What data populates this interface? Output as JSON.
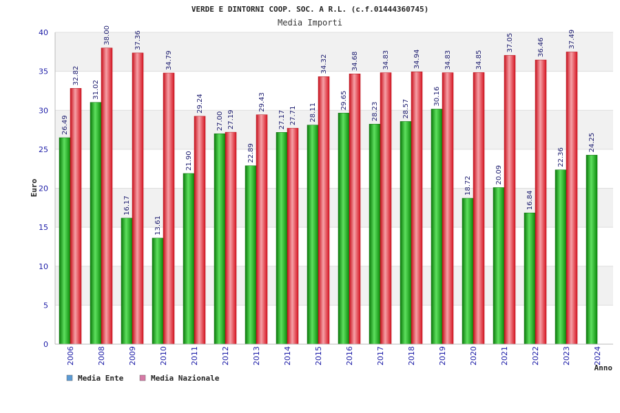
{
  "chart_data": {
    "type": "bar",
    "title": "VERDE E DINTORNI COOP. SOC. A R.L. (c.f.01444360745)",
    "subtitle": "Media Importi",
    "ylabel": "Euro",
    "xlabel": "Anno",
    "ylim": [
      0,
      40
    ],
    "yticks": [
      0,
      5,
      10,
      15,
      20,
      25,
      30,
      35,
      40
    ],
    "grid": true,
    "legend_position": "bottom-left",
    "categories": [
      "2006",
      "2008",
      "2009",
      "2010",
      "2011",
      "2012",
      "2013",
      "2014",
      "2015",
      "2016",
      "2017",
      "2018",
      "2019",
      "2020",
      "2021",
      "2022",
      "2023",
      "2024"
    ],
    "series": [
      {
        "name": "Media Ente",
        "color": "#1ea01e",
        "legend_color": "#5b9bd5",
        "values": [
          26.49,
          31.02,
          16.17,
          13.61,
          21.9,
          27.0,
          22.89,
          27.17,
          28.11,
          29.65,
          28.23,
          28.57,
          30.16,
          18.72,
          20.09,
          16.84,
          22.36,
          24.25
        ],
        "labels": [
          "26.49",
          "31.02",
          "16.17",
          "13.61",
          "21.90",
          "27.00",
          "22.89",
          "27.17",
          "28.11",
          "29.65",
          "28.23",
          "28.57",
          "30.16",
          "18.72",
          "20.09",
          "16.84",
          "22.36",
          "24.25"
        ]
      },
      {
        "name": "Media Nazionale",
        "color": "#e01e2a",
        "legend_color": "#d67aa6",
        "values": [
          32.82,
          38.0,
          37.36,
          34.79,
          29.24,
          27.19,
          29.43,
          27.71,
          34.32,
          34.68,
          34.83,
          34.94,
          34.83,
          34.85,
          37.05,
          36.46,
          37.49,
          null
        ],
        "labels": [
          "32.82",
          "38.00",
          "37.36",
          "34.79",
          "29.24",
          "27.19",
          "29.43",
          "27.71",
          "34.32",
          "34.68",
          "34.83",
          "34.94",
          "34.83",
          "34.85",
          "37.05",
          "36.46",
          "37.49",
          null
        ]
      }
    ]
  }
}
